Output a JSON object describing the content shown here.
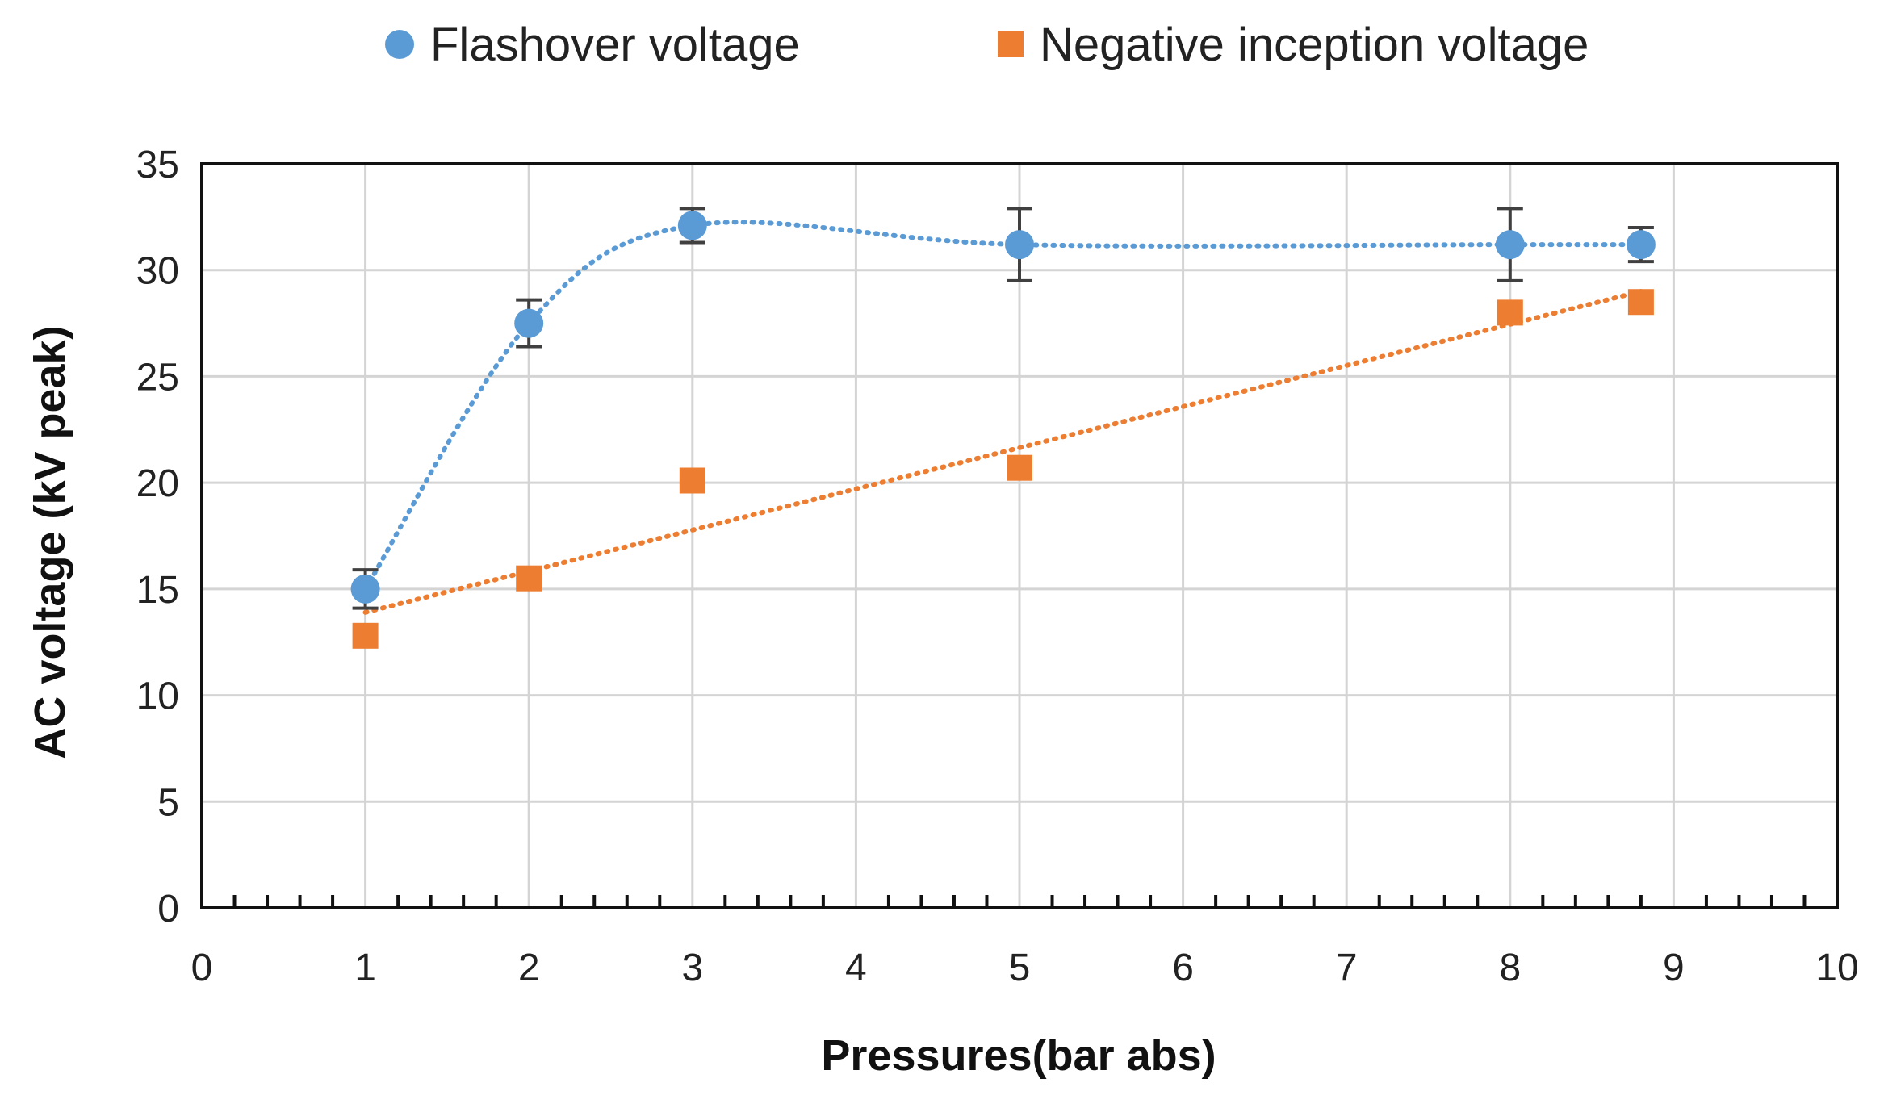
{
  "chart_data": {
    "type": "scatter",
    "title": "",
    "xlabel": "Pressures(bar abs)",
    "ylabel": "AC voltage (kV peak)",
    "xlim": [
      0,
      10
    ],
    "ylim": [
      0,
      35
    ],
    "x_ticks": [
      0,
      1,
      2,
      3,
      4,
      5,
      6,
      7,
      8,
      9,
      10
    ],
    "y_ticks": [
      0,
      5,
      10,
      15,
      20,
      25,
      30,
      35
    ],
    "x_minor_step": 0.2,
    "grid": true,
    "legend_position": "top",
    "series": [
      {
        "name": "Flashover voltage",
        "marker": "circle",
        "color": "#5B9BD5",
        "trendline": "smooth dotted",
        "x": [
          1,
          2,
          3,
          5,
          8,
          8.8
        ],
        "y": [
          15.0,
          27.5,
          32.1,
          31.2,
          31.2,
          31.2
        ],
        "error": [
          0.9,
          1.1,
          0.8,
          1.7,
          1.7,
          0.8
        ]
      },
      {
        "name": "Negative inception voltage",
        "marker": "square",
        "color": "#ED7D31",
        "trendline": "linear dotted",
        "x": [
          1,
          2,
          3,
          5,
          8,
          8.8
        ],
        "y": [
          12.8,
          15.5,
          20.1,
          20.7,
          28.0,
          28.5
        ],
        "trend_fit": [
          [
            1,
            13.9
          ],
          [
            8.8,
            29.0
          ]
        ]
      }
    ]
  }
}
